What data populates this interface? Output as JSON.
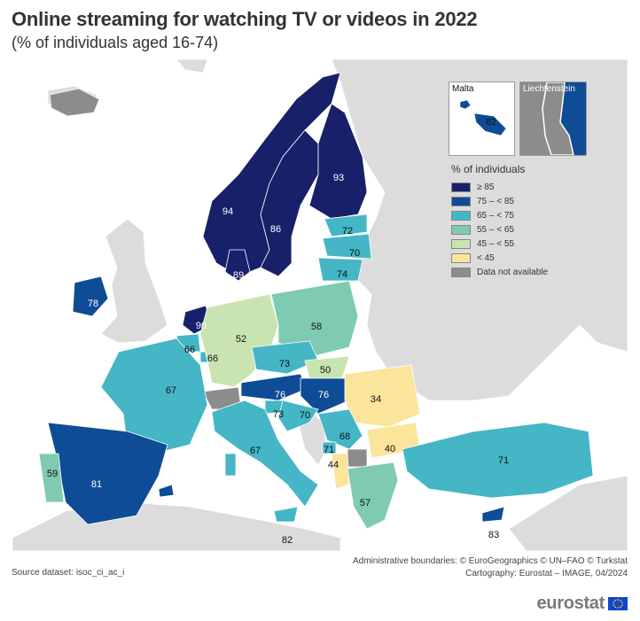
{
  "title": "Online streaming for watching TV or videos in 2022",
  "subtitle": "(% of individuals aged 16-74)",
  "colors": {
    "c85": "#19206a",
    "c75": "#0f4c96",
    "c65": "#44b6c6",
    "c55": "#7fcab2",
    "c45": "#c9e4b0",
    "c0": "#fbe59b",
    "na": "#8c8c8c",
    "nondata": "#dcdcdc",
    "sea": "#ffffff"
  },
  "legend": {
    "title": "% of individuals",
    "items": [
      {
        "label": "≥ 85",
        "color": "#19206a"
      },
      {
        "label": "75 – < 85",
        "color": "#0f4c96"
      },
      {
        "label": "65 – < 75",
        "color": "#44b6c6"
      },
      {
        "label": "55 – < 65",
        "color": "#7fcab2"
      },
      {
        "label": "45 – < 55",
        "color": "#c9e4b0"
      },
      {
        "label": "< 45",
        "color": "#fbe59b"
      },
      {
        "label": "Data not available",
        "color": "#8c8c8c"
      }
    ]
  },
  "insets": {
    "malta": {
      "title": "Malta",
      "value": "82"
    },
    "liechtenstein": {
      "title": "Liechtenstein"
    }
  },
  "values": {
    "norway": "94",
    "sweden": "86",
    "finland": "93",
    "denmark": "89",
    "ireland": "78",
    "netherlands": "90",
    "belgium": "66",
    "luxembourg": "66",
    "germany": "52",
    "poland": "58",
    "estonia": "72",
    "latvia": "70",
    "lithuania": "74",
    "czechia": "73",
    "slovakia": "50",
    "austria": "76",
    "hungary": "76",
    "slovenia": "73",
    "croatia": "70",
    "romania": "34",
    "bulgaria": "40",
    "serbia": "68",
    "montenegro": "71",
    "albania": "44",
    "greece": "57",
    "turkey": "71",
    "france": "67",
    "spain": "81",
    "portugal": "59",
    "italy": "67",
    "malta_main": "82",
    "cyprus": "83"
  },
  "map_data": {
    "type": "choropleth",
    "regions": [
      {
        "name": "Norway",
        "value": 94,
        "color": "#19206a"
      },
      {
        "name": "Sweden",
        "value": 86,
        "color": "#19206a"
      },
      {
        "name": "Finland",
        "value": 93,
        "color": "#19206a"
      },
      {
        "name": "Denmark",
        "value": 89,
        "color": "#19206a"
      },
      {
        "name": "Netherlands",
        "value": 90,
        "color": "#19206a"
      },
      {
        "name": "Ireland",
        "value": 78,
        "color": "#0f4c96"
      },
      {
        "name": "Spain",
        "value": 81,
        "color": "#0f4c96"
      },
      {
        "name": "Austria",
        "value": 76,
        "color": "#0f4c96"
      },
      {
        "name": "Hungary",
        "value": 76,
        "color": "#0f4c96"
      },
      {
        "name": "Malta",
        "value": 82,
        "color": "#0f4c96"
      },
      {
        "name": "Cyprus",
        "value": 83,
        "color": "#0f4c96"
      },
      {
        "name": "Estonia",
        "value": 72,
        "color": "#44b6c6"
      },
      {
        "name": "Latvia",
        "value": 70,
        "color": "#44b6c6"
      },
      {
        "name": "Lithuania",
        "value": 74,
        "color": "#44b6c6"
      },
      {
        "name": "Czechia",
        "value": 73,
        "color": "#44b6c6"
      },
      {
        "name": "Slovenia",
        "value": 73,
        "color": "#44b6c6"
      },
      {
        "name": "Croatia",
        "value": 70,
        "color": "#44b6c6"
      },
      {
        "name": "Serbia",
        "value": 68,
        "color": "#44b6c6"
      },
      {
        "name": "Montenegro",
        "value": 71,
        "color": "#44b6c6"
      },
      {
        "name": "Belgium",
        "value": 66,
        "color": "#44b6c6"
      },
      {
        "name": "Luxembourg",
        "value": 66,
        "color": "#44b6c6"
      },
      {
        "name": "France",
        "value": 67,
        "color": "#44b6c6"
      },
      {
        "name": "Italy",
        "value": 67,
        "color": "#44b6c6"
      },
      {
        "name": "Turkey",
        "value": 71,
        "color": "#44b6c6"
      },
      {
        "name": "Poland",
        "value": 58,
        "color": "#7fcab2"
      },
      {
        "name": "Portugal",
        "value": 59,
        "color": "#7fcab2"
      },
      {
        "name": "Greece",
        "value": 57,
        "color": "#7fcab2"
      },
      {
        "name": "Germany",
        "value": 52,
        "color": "#c9e4b0"
      },
      {
        "name": "Slovakia",
        "value": 50,
        "color": "#c9e4b0"
      },
      {
        "name": "Romania",
        "value": 34,
        "color": "#fbe59b"
      },
      {
        "name": "Bulgaria",
        "value": 40,
        "color": "#fbe59b"
      },
      {
        "name": "Albania",
        "value": 44,
        "color": "#fbe59b"
      },
      {
        "name": "Switzerland",
        "value": null,
        "color": "#8c8c8c"
      },
      {
        "name": "North Macedonia",
        "value": null,
        "color": "#8c8c8c"
      }
    ]
  },
  "source": "Source dataset: isoc_ci_ac_i",
  "credits": {
    "line1": "Administrative boundaries: © EuroGeographics © UN–FAO © Turkstat",
    "line2": "Cartography: Eurostat – IMAGE, 04/2024"
  },
  "logo": "eurostat"
}
